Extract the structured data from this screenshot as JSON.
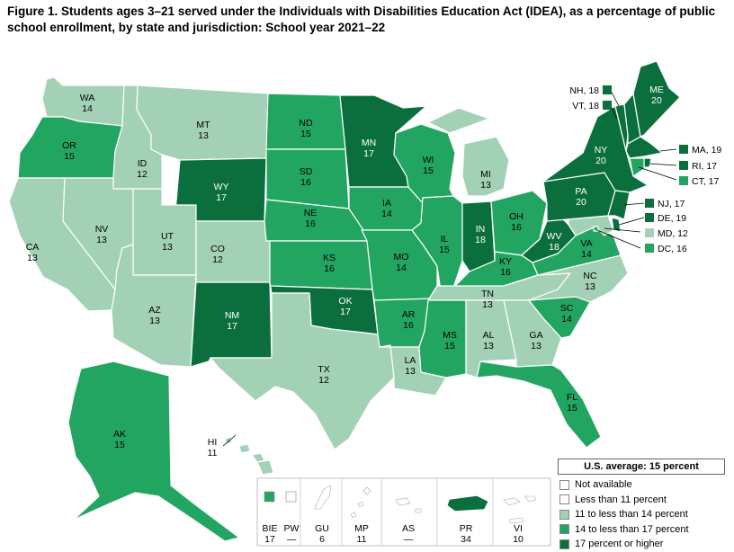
{
  "title": "Figure 1. Students ages 3–21 served under the Individuals with Disabilities Education Act (IDEA), as a percentage of public school enrollment, by state and jurisdiction: School year 2021–22",
  "colors": {
    "not_available": "#ffffff",
    "lt11": "#ffffff",
    "c11_14": "#a3d1b6",
    "c14_17": "#23a562",
    "c17plus": "#0b6f3d"
  },
  "legend": {
    "us_average": "U.S. average: 15 percent",
    "items": [
      {
        "label": "Not available",
        "cat": "not_available"
      },
      {
        "label": "Less than 11 percent",
        "cat": "lt11"
      },
      {
        "label": "11 to less than 14 percent",
        "cat": "c11_14"
      },
      {
        "label": "14 to less than 17 percent",
        "cat": "c14_17"
      },
      {
        "label": "17 percent or higher",
        "cat": "c17plus"
      }
    ]
  },
  "states": [
    {
      "abbr": "WA",
      "value": "14",
      "cat": "c11_14"
    },
    {
      "abbr": "OR",
      "value": "15",
      "cat": "c14_17"
    },
    {
      "abbr": "CA",
      "value": "13",
      "cat": "c11_14"
    },
    {
      "abbr": "ID",
      "value": "12",
      "cat": "c11_14"
    },
    {
      "abbr": "NV",
      "value": "13",
      "cat": "c11_14"
    },
    {
      "abbr": "MT",
      "value": "13",
      "cat": "c11_14"
    },
    {
      "abbr": "WY",
      "value": "17",
      "cat": "c17plus"
    },
    {
      "abbr": "UT",
      "value": "13",
      "cat": "c11_14"
    },
    {
      "abbr": "AZ",
      "value": "13",
      "cat": "c11_14"
    },
    {
      "abbr": "CO",
      "value": "12",
      "cat": "c11_14"
    },
    {
      "abbr": "NM",
      "value": "17",
      "cat": "c17plus"
    },
    {
      "abbr": "ND",
      "value": "15",
      "cat": "c14_17"
    },
    {
      "abbr": "SD",
      "value": "16",
      "cat": "c14_17"
    },
    {
      "abbr": "NE",
      "value": "16",
      "cat": "c14_17"
    },
    {
      "abbr": "KS",
      "value": "16",
      "cat": "c14_17"
    },
    {
      "abbr": "OK",
      "value": "17",
      "cat": "c17plus"
    },
    {
      "abbr": "TX",
      "value": "12",
      "cat": "c11_14"
    },
    {
      "abbr": "MN",
      "value": "17",
      "cat": "c17plus"
    },
    {
      "abbr": "IA",
      "value": "14",
      "cat": "c14_17"
    },
    {
      "abbr": "MO",
      "value": "14",
      "cat": "c14_17"
    },
    {
      "abbr": "AR",
      "value": "16",
      "cat": "c14_17"
    },
    {
      "abbr": "LA",
      "value": "13",
      "cat": "c11_14"
    },
    {
      "abbr": "WI",
      "value": "15",
      "cat": "c14_17"
    },
    {
      "abbr": "IL",
      "value": "15",
      "cat": "c14_17"
    },
    {
      "abbr": "MI",
      "value": "13",
      "cat": "c11_14"
    },
    {
      "abbr": "IN",
      "value": "18",
      "cat": "c17plus"
    },
    {
      "abbr": "OH",
      "value": "16",
      "cat": "c14_17"
    },
    {
      "abbr": "KY",
      "value": "16",
      "cat": "c14_17"
    },
    {
      "abbr": "TN",
      "value": "13",
      "cat": "c11_14"
    },
    {
      "abbr": "MS",
      "value": "15",
      "cat": "c14_17"
    },
    {
      "abbr": "AL",
      "value": "13",
      "cat": "c11_14"
    },
    {
      "abbr": "GA",
      "value": "13",
      "cat": "c11_14"
    },
    {
      "abbr": "FL",
      "value": "15",
      "cat": "c14_17"
    },
    {
      "abbr": "SC",
      "value": "14",
      "cat": "c14_17"
    },
    {
      "abbr": "NC",
      "value": "13",
      "cat": "c11_14"
    },
    {
      "abbr": "VA",
      "value": "14",
      "cat": "c14_17"
    },
    {
      "abbr": "WV",
      "value": "18",
      "cat": "c17plus"
    },
    {
      "abbr": "PA",
      "value": "20",
      "cat": "c17plus"
    },
    {
      "abbr": "NY",
      "value": "20",
      "cat": "c17plus"
    },
    {
      "abbr": "ME",
      "value": "20",
      "cat": "c17plus"
    },
    {
      "abbr": "AK",
      "value": "15",
      "cat": "c14_17"
    },
    {
      "abbr": "HI",
      "value": "11",
      "cat": "c11_14"
    }
  ],
  "callouts": [
    {
      "abbr": "NH",
      "value": "18",
      "cat": "c17plus"
    },
    {
      "abbr": "VT",
      "value": "18",
      "cat": "c17plus"
    },
    {
      "abbr": "MA",
      "value": "19",
      "cat": "c17plus"
    },
    {
      "abbr": "RI",
      "value": "17",
      "cat": "c17plus"
    },
    {
      "abbr": "CT",
      "value": "17",
      "cat": "c14_17"
    },
    {
      "abbr": "NJ",
      "value": "17",
      "cat": "c17plus"
    },
    {
      "abbr": "DE",
      "value": "19",
      "cat": "c17plus"
    },
    {
      "abbr": "MD",
      "value": "12",
      "cat": "c11_14"
    },
    {
      "abbr": "DC",
      "value": "16",
      "cat": "c14_17"
    }
  ],
  "jurisdictions": [
    {
      "abbr": "BIE",
      "value": "17",
      "cat": "c14_17"
    },
    {
      "abbr": "PW",
      "value": "—",
      "cat": "not_available"
    },
    {
      "abbr": "GU",
      "value": "6",
      "cat": "lt11"
    },
    {
      "abbr": "MP",
      "value": "11",
      "cat": "c11_14"
    },
    {
      "abbr": "AS",
      "value": "—",
      "cat": "not_available"
    },
    {
      "abbr": "PR",
      "value": "34",
      "cat": "c17plus"
    },
    {
      "abbr": "VI",
      "value": "10",
      "cat": "lt11"
    }
  ]
}
